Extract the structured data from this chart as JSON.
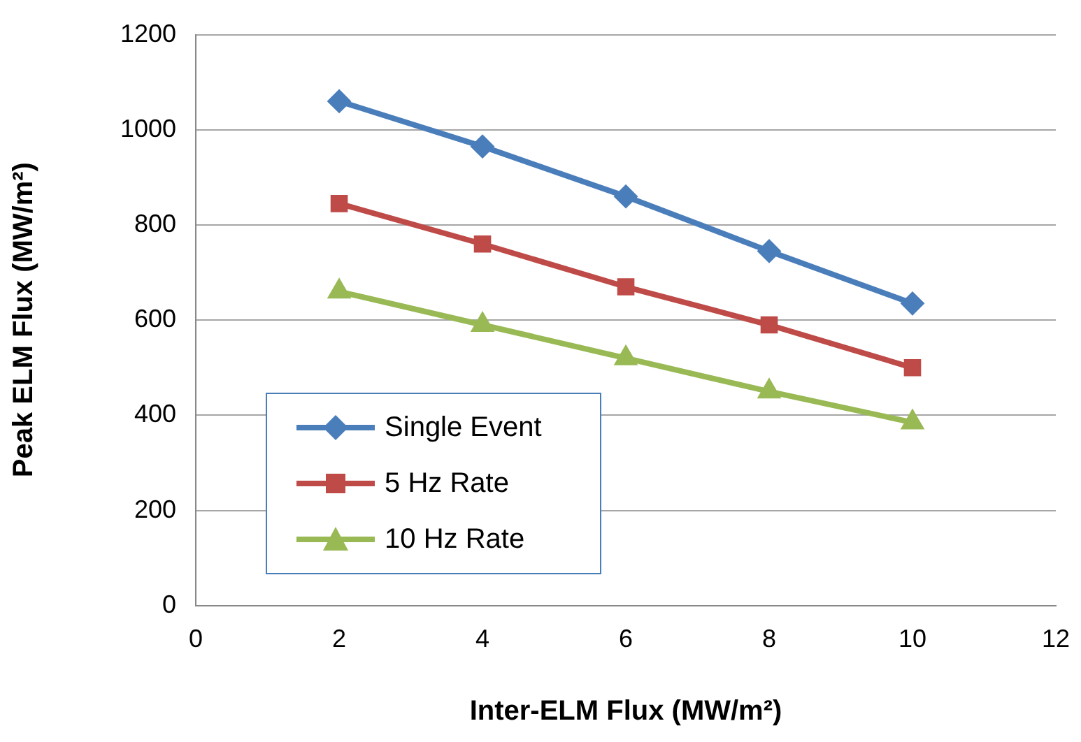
{
  "chart_data": {
    "type": "line",
    "xlabel": "Inter-ELM Flux (MW/m²)",
    "ylabel": "Peak ELM Flux (MW/m²)",
    "x": [
      2,
      4,
      6,
      8,
      10
    ],
    "series": [
      {
        "name": "Single Event",
        "color": "#4a7ebb",
        "marker": "diamond",
        "values": [
          1060,
          965,
          860,
          745,
          635
        ]
      },
      {
        "name": "5 Hz Rate",
        "color": "#be4b48",
        "marker": "square",
        "values": [
          845,
          760,
          670,
          590,
          500
        ]
      },
      {
        "name": "10 Hz Rate",
        "color": "#98b954",
        "marker": "triangle",
        "values": [
          660,
          590,
          520,
          450,
          385
        ]
      }
    ],
    "xlim": [
      0,
      12
    ],
    "xticks": [
      0,
      2,
      4,
      6,
      8,
      10,
      12
    ],
    "ylim": [
      0,
      1200
    ],
    "yticks": [
      0,
      200,
      400,
      600,
      800,
      1000,
      1200
    ],
    "grid": "y",
    "legend": "bottom left",
    "line_style": "solid"
  }
}
